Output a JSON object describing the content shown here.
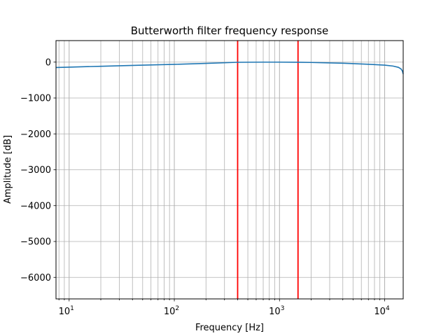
{
  "chart_data": {
    "type": "line",
    "title": "Butterworth filter frequency response",
    "xlabel": "Frequency [Hz]",
    "ylabel": "Amplitude [dB]",
    "xscale": "log",
    "xlim": [
      7.5,
      15000
    ],
    "ylim": [
      -6600,
      600
    ],
    "grid": "both",
    "x_ticks": [
      {
        "value": 10,
        "label": "10",
        "exp": "1"
      },
      {
        "value": 100,
        "label": "10",
        "exp": "2"
      },
      {
        "value": 1000,
        "label": "10",
        "exp": "3"
      },
      {
        "value": 10000,
        "label": "10",
        "exp": "4"
      }
    ],
    "y_ticks": [
      {
        "value": 0,
        "label": "0"
      },
      {
        "value": -1000,
        "label": "−1000"
      },
      {
        "value": -2000,
        "label": "−2000"
      },
      {
        "value": -3000,
        "label": "−3000"
      },
      {
        "value": -4000,
        "label": "−4000"
      },
      {
        "value": -5000,
        "label": "−5000"
      },
      {
        "value": -6000,
        "label": "−6000"
      }
    ],
    "series": [
      {
        "color": "#1f77b4",
        "x": [
          7.5,
          10,
          20,
          50,
          100,
          200,
          400,
          700,
          1000,
          1500,
          2000,
          4000,
          7000,
          10000,
          12000,
          13500,
          14300,
          14700,
          15000
        ],
        "y": [
          -150,
          -140,
          -115,
          -85,
          -62,
          -36,
          -5,
          0,
          0,
          -4,
          -10,
          -30,
          -60,
          -85,
          -110,
          -145,
          -190,
          -240,
          -330
        ]
      }
    ],
    "vlines": [
      {
        "x": 400,
        "color": "#ff0000"
      },
      {
        "x": 1500,
        "color": "#ff0000"
      }
    ]
  }
}
